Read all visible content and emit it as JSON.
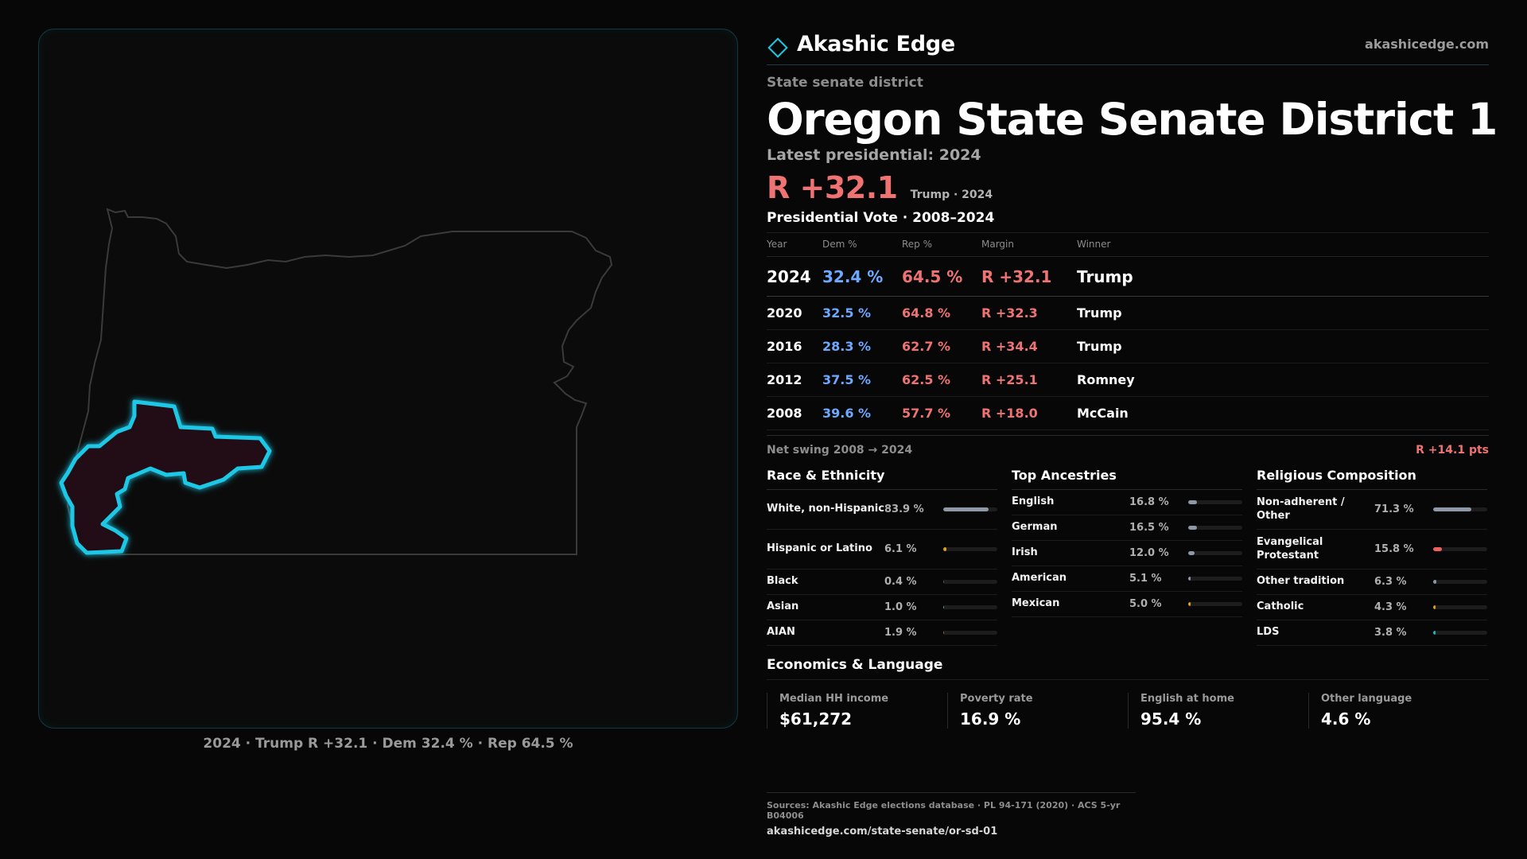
{
  "brand": {
    "name": "Akashic Edge",
    "url": "akashicedge.com"
  },
  "header": {
    "kicker": "State senate district",
    "title": "Oregon State Senate District 1",
    "latest": "Latest presidential: 2024",
    "margin": "R +32.1",
    "margin_sub": "Trump · 2024"
  },
  "colors": {
    "dem": "#6ea8ff",
    "rep": "#ef7373",
    "accent": "#1fc8e6",
    "neutral": "#7b8796"
  },
  "votes": {
    "title": "Presidential Vote · 2008–2024",
    "headers": {
      "year": "Year",
      "dem": "Dem %",
      "rep": "Rep %",
      "margin": "Margin",
      "winner": "Winner"
    },
    "rows": [
      {
        "year": "2024",
        "dem": "32.4 %",
        "rep": "64.5 %",
        "margin": "R +32.1",
        "winner": "Trump"
      },
      {
        "year": "2020",
        "dem": "32.5 %",
        "rep": "64.8 %",
        "margin": "R +32.3",
        "winner": "Trump"
      },
      {
        "year": "2016",
        "dem": "28.3 %",
        "rep": "62.7 %",
        "margin": "R +34.4",
        "winner": "Trump"
      },
      {
        "year": "2012",
        "dem": "37.5 %",
        "rep": "62.5 %",
        "margin": "R +25.1",
        "winner": "Romney"
      },
      {
        "year": "2008",
        "dem": "39.6 %",
        "rep": "57.7 %",
        "margin": "R +18.0",
        "winner": "McCain"
      }
    ]
  },
  "swing": {
    "label": "Net swing 2008 → 2024",
    "value": "R +14.1 pts"
  },
  "race": {
    "title": "Race & Ethnicity",
    "items": [
      {
        "label": "White, non-Hispanic",
        "value": "83.9 %",
        "pct": 83.9,
        "color": "#8e98a6"
      },
      {
        "label": "Hispanic or Latino",
        "value": "6.1 %",
        "pct": 6.1,
        "color": "#e0a020"
      },
      {
        "label": "Black",
        "value": "0.4 %",
        "pct": 0.4,
        "color": "#5a5a5a"
      },
      {
        "label": "Asian",
        "value": "1.0 %",
        "pct": 1.0,
        "color": "#2ab0a0"
      },
      {
        "label": "AIAN",
        "value": "1.9 %",
        "pct": 1.9,
        "color": "#c05030"
      }
    ]
  },
  "ancestry": {
    "title": "Top Ancestries",
    "items": [
      {
        "label": "English",
        "value": "16.8 %",
        "pct": 16.8,
        "color": "#8e98a6"
      },
      {
        "label": "German",
        "value": "16.5 %",
        "pct": 16.5,
        "color": "#8e98a6"
      },
      {
        "label": "Irish",
        "value": "12.0 %",
        "pct": 12.0,
        "color": "#8e98a6"
      },
      {
        "label": "American",
        "value": "5.1 %",
        "pct": 5.1,
        "color": "#8e98a6"
      },
      {
        "label": "Mexican",
        "value": "5.0 %",
        "pct": 5.0,
        "color": "#e0a020"
      }
    ]
  },
  "religion": {
    "title": "Religious Composition",
    "items": [
      {
        "label": "Non-adherent / Other",
        "value": "71.3 %",
        "pct": 71.3,
        "color": "#8e98a6"
      },
      {
        "label": "Evangelical Protestant",
        "value": "15.8 %",
        "pct": 15.8,
        "color": "#ef6060"
      },
      {
        "label": "Other tradition",
        "value": "6.3 %",
        "pct": 6.3,
        "color": "#8e98a6"
      },
      {
        "label": "Catholic",
        "value": "4.3 %",
        "pct": 4.3,
        "color": "#e0a020"
      },
      {
        "label": "LDS",
        "value": "3.8 %",
        "pct": 3.8,
        "color": "#2ab0c0"
      }
    ]
  },
  "economics": {
    "title": "Economics & Language",
    "items": [
      {
        "label": "Median HH income",
        "value": "$61,272"
      },
      {
        "label": "Poverty rate",
        "value": "16.9 %"
      },
      {
        "label": "English at home",
        "value": "95.4 %"
      },
      {
        "label": "Other language",
        "value": "4.6 %"
      }
    ]
  },
  "map": {
    "caption": "2024 · Trump R +32.1 · Dem 32.4 % · Rep 64.5 %"
  },
  "sources": {
    "line": "Sources: Akashic Edge elections database · PL 94-171 (2020) · ACS 5-yr B04006",
    "url": "akashicedge.com/state-senate/or-sd-01"
  }
}
